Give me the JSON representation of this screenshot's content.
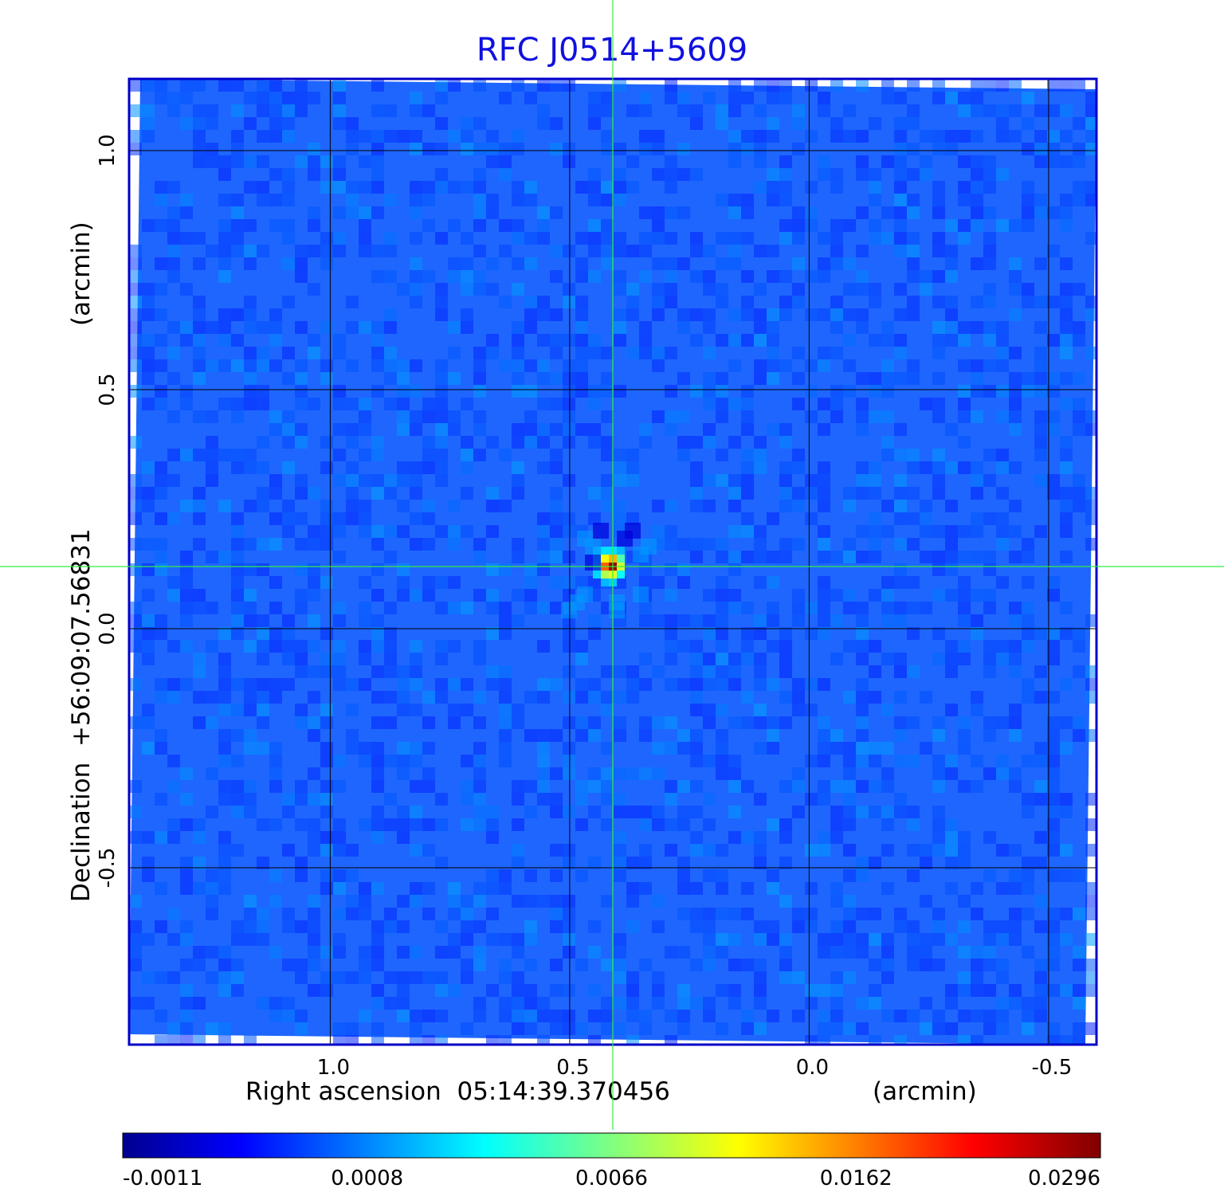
{
  "chart_data": {
    "type": "heatmap",
    "title": "RFC J0514+5609",
    "xlabel": "Right ascension  05:14:39.370456",
    "xunit": "(arcmin)",
    "ylabel": "Declination  +56:09:07.56831",
    "yunit": "(arcmin)",
    "x_ticks": [
      "1.0",
      "0.5",
      "0.0",
      "-0.5"
    ],
    "x_tick_values": [
      1.0,
      0.5,
      0.0,
      -0.5
    ],
    "y_ticks": [
      "1.0",
      "0.5",
      "0.0",
      "-0.5"
    ],
    "y_tick_values": [
      1.0,
      0.5,
      0.0,
      -0.5
    ],
    "xlim": [
      1.42,
      -0.6
    ],
    "ylim": [
      -0.87,
      1.15
    ],
    "grid": true,
    "colormap": "jet",
    "colorbar_ticks": [
      "-0.0011",
      "0.0008",
      "0.0066",
      "0.0162",
      "0.0296"
    ],
    "colorbar_values": [
      -0.0011,
      0.0008,
      0.0066,
      0.0162,
      0.0296
    ],
    "source": {
      "x": 0.41,
      "y": 0.13,
      "peak": 0.0296
    },
    "crosshair": {
      "x": 0.41,
      "y": 0.13
    },
    "background_level": 0.0003,
    "colors": {
      "frame": "#0000c8",
      "title": "#1010e0",
      "crosshair": "#33ee44",
      "grid": "#000000"
    }
  }
}
